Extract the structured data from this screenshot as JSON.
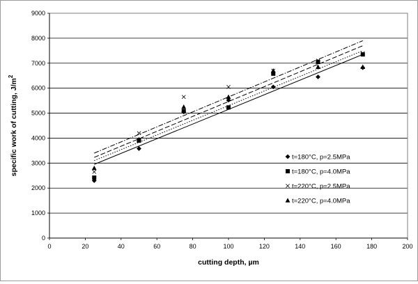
{
  "chart_data": {
    "type": "scatter",
    "xlabel": "cutting depth, µm",
    "ylabel": "specific work of cutting, J/m",
    "ylabel_superscript": "2",
    "xlim": [
      0,
      200
    ],
    "ylim": [
      0,
      9000
    ],
    "x_ticks": [
      "0",
      "20",
      "40",
      "60",
      "80",
      "100",
      "120",
      "140",
      "160",
      "180",
      "200"
    ],
    "y_ticks": [
      "0",
      "1000",
      "2000",
      "3000",
      "4000",
      "5000",
      "6000",
      "7000",
      "8000",
      "9000"
    ],
    "grid": "horizontal",
    "legend_position": "bottom-right",
    "series": [
      {
        "name": "t=180°C, p=2.5MPa",
        "marker": "diamond",
        "points": [
          [
            25,
            2300
          ],
          [
            50,
            3580
          ],
          [
            75,
            5050
          ],
          [
            100,
            5520
          ],
          [
            125,
            6050
          ],
          [
            150,
            6450
          ],
          [
            175,
            6820
          ]
        ],
        "trend": {
          "style": "solid",
          "from": [
            25,
            2950
          ],
          "to": [
            175,
            7350
          ]
        }
      },
      {
        "name": "t=180°C, p=4.0MPa",
        "marker": "square",
        "points": [
          [
            25,
            2420
          ],
          [
            50,
            3900
          ],
          [
            75,
            5080
          ],
          [
            100,
            5230
          ],
          [
            125,
            6580
          ],
          [
            150,
            7050
          ],
          [
            175,
            7350
          ]
        ],
        "trend": {
          "style": "dashed",
          "from": [
            25,
            3230
          ],
          "to": [
            175,
            7700
          ]
        }
      },
      {
        "name": "t=220°C, p=2.5MPa",
        "marker": "x",
        "points": [
          [
            25,
            2650
          ],
          [
            50,
            4200
          ],
          [
            75,
            5650
          ],
          [
            100,
            6050
          ],
          [
            125,
            6700
          ],
          [
            150,
            7100
          ],
          [
            175,
            7400
          ]
        ],
        "trend": {
          "style": "dashdot",
          "from": [
            25,
            3400
          ],
          "to": [
            175,
            7900
          ]
        }
      },
      {
        "name": "t=220°C, p=4.0MPa",
        "marker": "triangle",
        "points": [
          [
            25,
            2800
          ],
          [
            50,
            3950
          ],
          [
            75,
            5250
          ],
          [
            100,
            5650
          ],
          [
            125,
            6700
          ],
          [
            150,
            6850
          ],
          [
            175,
            6850
          ]
        ],
        "trend": {
          "style": "dotted",
          "from": [
            25,
            3100
          ],
          "to": [
            175,
            7500
          ]
        }
      }
    ]
  }
}
